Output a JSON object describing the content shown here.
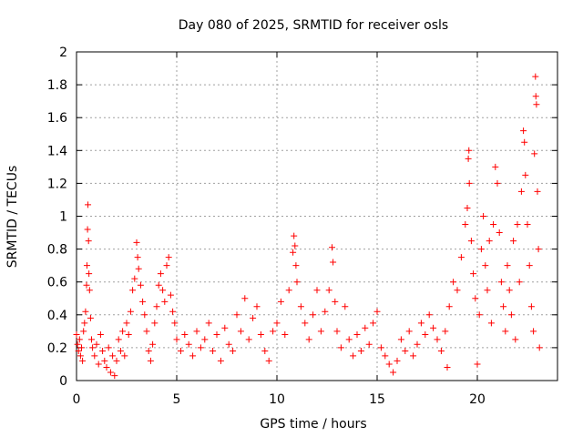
{
  "chart_data": {
    "type": "scatter",
    "title": "Day 080 of 2025, SRMTID for receiver osls",
    "xlabel": "GPS time / hours",
    "ylabel": "SRMTID / TECUs",
    "xlim": [
      0,
      24
    ],
    "ylim": [
      0,
      2
    ],
    "x_ticks": [
      0,
      5,
      10,
      15,
      20
    ],
    "x_tick_labels": [
      "0",
      "5",
      "10",
      "15",
      "20"
    ],
    "y_ticks": [
      0,
      0.2,
      0.4,
      0.6,
      0.8,
      1,
      1.2,
      1.4,
      1.6,
      1.8,
      2
    ],
    "y_tick_labels": [
      "0",
      "0.2",
      "0.4",
      "0.6",
      "0.8",
      "1",
      "1.2",
      "1.4",
      "1.6",
      "1.8",
      "2"
    ],
    "grid": true,
    "marker": "+",
    "marker_color": "#ff0000",
    "series": [
      {
        "name": "SRMTID",
        "points": [
          [
            0.0,
            0.28
          ],
          [
            0.05,
            0.22
          ],
          [
            0.1,
            0.18
          ],
          [
            0.15,
            0.25
          ],
          [
            0.2,
            0.15
          ],
          [
            0.25,
            0.2
          ],
          [
            0.3,
            0.12
          ],
          [
            0.35,
            0.3
          ],
          [
            0.4,
            0.35
          ],
          [
            0.45,
            0.42
          ],
          [
            0.5,
            0.58
          ],
          [
            0.52,
            0.7
          ],
          [
            0.55,
            0.92
          ],
          [
            0.57,
            1.07
          ],
          [
            0.6,
            0.85
          ],
          [
            0.62,
            0.65
          ],
          [
            0.65,
            0.55
          ],
          [
            0.7,
            0.38
          ],
          [
            0.75,
            0.25
          ],
          [
            0.8,
            0.2
          ],
          [
            0.9,
            0.15
          ],
          [
            1.0,
            0.22
          ],
          [
            1.1,
            0.1
          ],
          [
            1.2,
            0.28
          ],
          [
            1.3,
            0.18
          ],
          [
            1.4,
            0.12
          ],
          [
            1.5,
            0.08
          ],
          [
            1.6,
            0.2
          ],
          [
            1.7,
            0.05
          ],
          [
            1.8,
            0.15
          ],
          [
            1.9,
            0.03
          ],
          [
            2.0,
            0.12
          ],
          [
            2.1,
            0.25
          ],
          [
            2.2,
            0.18
          ],
          [
            2.3,
            0.3
          ],
          [
            2.4,
            0.15
          ],
          [
            2.5,
            0.35
          ],
          [
            2.6,
            0.28
          ],
          [
            2.7,
            0.42
          ],
          [
            2.8,
            0.55
          ],
          [
            2.9,
            0.62
          ],
          [
            3.0,
            0.84
          ],
          [
            3.05,
            0.75
          ],
          [
            3.1,
            0.68
          ],
          [
            3.2,
            0.58
          ],
          [
            3.3,
            0.48
          ],
          [
            3.4,
            0.4
          ],
          [
            3.5,
            0.3
          ],
          [
            3.6,
            0.18
          ],
          [
            3.7,
            0.12
          ],
          [
            3.8,
            0.22
          ],
          [
            3.9,
            0.35
          ],
          [
            4.0,
            0.45
          ],
          [
            4.1,
            0.58
          ],
          [
            4.2,
            0.65
          ],
          [
            4.3,
            0.55
          ],
          [
            4.4,
            0.48
          ],
          [
            4.5,
            0.7
          ],
          [
            4.6,
            0.75
          ],
          [
            4.7,
            0.52
          ],
          [
            4.8,
            0.42
          ],
          [
            4.9,
            0.35
          ],
          [
            5.0,
            0.25
          ],
          [
            5.2,
            0.18
          ],
          [
            5.4,
            0.28
          ],
          [
            5.6,
            0.22
          ],
          [
            5.8,
            0.15
          ],
          [
            6.0,
            0.3
          ],
          [
            6.2,
            0.2
          ],
          [
            6.4,
            0.25
          ],
          [
            6.6,
            0.35
          ],
          [
            6.8,
            0.18
          ],
          [
            7.0,
            0.28
          ],
          [
            7.2,
            0.12
          ],
          [
            7.4,
            0.32
          ],
          [
            7.6,
            0.22
          ],
          [
            7.8,
            0.18
          ],
          [
            8.0,
            0.4
          ],
          [
            8.2,
            0.3
          ],
          [
            8.4,
            0.5
          ],
          [
            8.6,
            0.25
          ],
          [
            8.8,
            0.38
          ],
          [
            9.0,
            0.45
          ],
          [
            9.2,
            0.28
          ],
          [
            9.4,
            0.18
          ],
          [
            9.6,
            0.12
          ],
          [
            9.8,
            0.3
          ],
          [
            10.0,
            0.35
          ],
          [
            10.2,
            0.48
          ],
          [
            10.4,
            0.28
          ],
          [
            10.6,
            0.55
          ],
          [
            10.8,
            0.78
          ],
          [
            10.85,
            0.88
          ],
          [
            10.9,
            0.82
          ],
          [
            10.95,
            0.7
          ],
          [
            11.0,
            0.6
          ],
          [
            11.2,
            0.45
          ],
          [
            11.4,
            0.35
          ],
          [
            11.6,
            0.25
          ],
          [
            11.8,
            0.4
          ],
          [
            12.0,
            0.55
          ],
          [
            12.2,
            0.3
          ],
          [
            12.4,
            0.42
          ],
          [
            12.6,
            0.55
          ],
          [
            12.75,
            0.81
          ],
          [
            12.8,
            0.72
          ],
          [
            12.9,
            0.48
          ],
          [
            13.0,
            0.3
          ],
          [
            13.2,
            0.2
          ],
          [
            13.4,
            0.45
          ],
          [
            13.6,
            0.25
          ],
          [
            13.8,
            0.15
          ],
          [
            14.0,
            0.28
          ],
          [
            14.2,
            0.18
          ],
          [
            14.4,
            0.32
          ],
          [
            14.6,
            0.22
          ],
          [
            14.8,
            0.35
          ],
          [
            15.0,
            0.42
          ],
          [
            15.2,
            0.2
          ],
          [
            15.4,
            0.15
          ],
          [
            15.6,
            0.1
          ],
          [
            15.8,
            0.05
          ],
          [
            16.0,
            0.12
          ],
          [
            16.2,
            0.25
          ],
          [
            16.4,
            0.18
          ],
          [
            16.6,
            0.3
          ],
          [
            16.8,
            0.15
          ],
          [
            17.0,
            0.22
          ],
          [
            17.2,
            0.35
          ],
          [
            17.4,
            0.28
          ],
          [
            17.6,
            0.4
          ],
          [
            17.8,
            0.32
          ],
          [
            18.0,
            0.25
          ],
          [
            18.2,
            0.18
          ],
          [
            18.4,
            0.3
          ],
          [
            18.5,
            0.08
          ],
          [
            18.6,
            0.45
          ],
          [
            18.8,
            0.6
          ],
          [
            19.0,
            0.55
          ],
          [
            19.2,
            0.75
          ],
          [
            19.4,
            0.95
          ],
          [
            19.5,
            1.05
          ],
          [
            19.55,
            1.35
          ],
          [
            19.58,
            1.4
          ],
          [
            19.6,
            1.2
          ],
          [
            19.7,
            0.85
          ],
          [
            19.8,
            0.65
          ],
          [
            19.9,
            0.5
          ],
          [
            20.0,
            0.1
          ],
          [
            20.1,
            0.4
          ],
          [
            20.2,
            0.8
          ],
          [
            20.3,
            1.0
          ],
          [
            20.4,
            0.7
          ],
          [
            20.5,
            0.55
          ],
          [
            20.6,
            0.85
          ],
          [
            20.7,
            0.35
          ],
          [
            20.8,
            0.95
          ],
          [
            20.9,
            1.3
          ],
          [
            21.0,
            1.2
          ],
          [
            21.1,
            0.9
          ],
          [
            21.2,
            0.6
          ],
          [
            21.3,
            0.45
          ],
          [
            21.4,
            0.3
          ],
          [
            21.5,
            0.7
          ],
          [
            21.6,
            0.55
          ],
          [
            21.7,
            0.4
          ],
          [
            21.8,
            0.85
          ],
          [
            21.9,
            0.25
          ],
          [
            22.0,
            0.95
          ],
          [
            22.1,
            0.6
          ],
          [
            22.2,
            1.15
          ],
          [
            22.3,
            1.52
          ],
          [
            22.35,
            1.45
          ],
          [
            22.4,
            1.25
          ],
          [
            22.5,
            0.95
          ],
          [
            22.6,
            0.7
          ],
          [
            22.7,
            0.45
          ],
          [
            22.8,
            0.3
          ],
          [
            22.85,
            1.38
          ],
          [
            22.9,
            1.85
          ],
          [
            22.92,
            1.73
          ],
          [
            22.95,
            1.68
          ],
          [
            23.0,
            1.15
          ],
          [
            23.05,
            0.8
          ],
          [
            23.1,
            0.2
          ]
        ]
      }
    ]
  }
}
